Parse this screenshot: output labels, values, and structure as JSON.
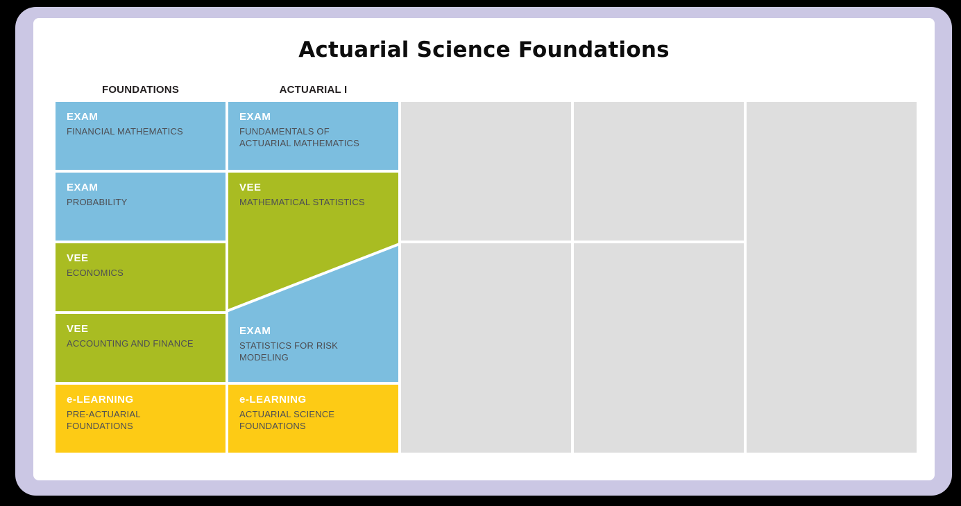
{
  "title": "Actuarial Science Foundations",
  "pathway": {
    "headers": [
      "FOUNDATIONS",
      "ACTUARIAL I"
    ],
    "foundations": [
      {
        "tag": "EXAM",
        "label": "FINANCIAL MATHEMATICS",
        "type": "exam"
      },
      {
        "tag": "EXAM",
        "label": "PROBABILITY",
        "type": "exam"
      },
      {
        "tag": "VEE",
        "label": "ECONOMICS",
        "type": "vee"
      },
      {
        "tag": "VEE",
        "label": "ACCOUNTING AND FINANCE",
        "type": "vee"
      },
      {
        "tag": "e-LEARNING",
        "label": "PRE-ACTUARIAL FOUNDATIONS",
        "type": "elearning"
      }
    ],
    "actuarial_i": [
      {
        "tag": "EXAM",
        "label": "FUNDAMENTALS OF ACTUARIAL MATHEMATICS",
        "type": "exam"
      },
      {
        "tag": "VEE",
        "label": "MATHEMATICAL STATISTICS",
        "type": "vee"
      },
      {
        "tag": "EXAM",
        "label": "STATISTICS FOR RISK MODELING",
        "type": "exam"
      },
      {
        "tag": "e-LEARNING",
        "label": "ACTUARIAL SCIENCE FOUNDATIONS",
        "type": "elearning"
      }
    ]
  },
  "palette": {
    "exam-blue": "#7CBEDF",
    "vee-green": "#A9BC22",
    "elearning-yellow": "#FDCB15",
    "placeholder-gray": "#DEDEDE",
    "frame-lavender": "#CBC7E4",
    "background-black": "#000000",
    "text-dark": "#4D4E53",
    "heading-dark": "#231F20"
  }
}
